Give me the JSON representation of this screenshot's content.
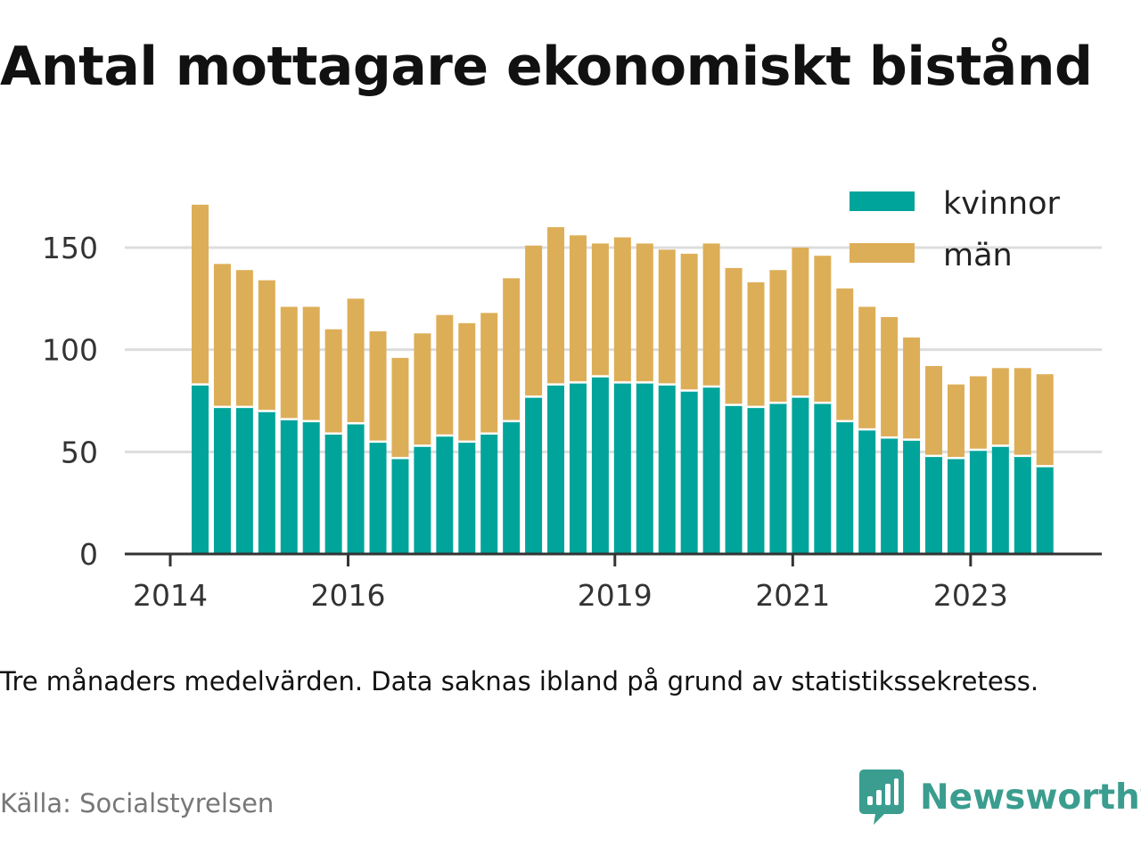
{
  "title": "Antal mottagare ekonomiskt bistånd",
  "note": "Tre månaders medelvärden. Data saknas ibland på grund av statistikssekretess.",
  "source": "Källa: Socialstyrelsen",
  "brand": {
    "name": "Newsworthy",
    "color": "#3a9d8f",
    "icon": "newsworthy-logo-icon"
  },
  "chart_data": {
    "type": "bar",
    "stacked": true,
    "title": "",
    "xlabel": "",
    "ylabel": "",
    "ylim": [
      0,
      175
    ],
    "yticks": [
      0,
      50,
      100,
      150
    ],
    "grid": true,
    "legend_position": "top-right",
    "x_ticks": [
      {
        "label": "2014",
        "quarter": 0
      },
      {
        "label": "2016",
        "quarter": 8
      },
      {
        "label": "2019",
        "quarter": 20
      },
      {
        "label": "2021",
        "quarter": 28
      },
      {
        "label": "2023",
        "quarter": 36
      }
    ],
    "categories": [
      "2014 Q2",
      "2014 Q3",
      "2014 Q4",
      "2015 Q1",
      "2015 Q2",
      "2015 Q3",
      "2015 Q4",
      "2016 Q1",
      "2016 Q2",
      "2016 Q3",
      "2016 Q4",
      "2017 Q1",
      "2017 Q2",
      "2017 Q3",
      "2017 Q4",
      "2018 Q1",
      "2018 Q2",
      "2018 Q3",
      "2018 Q4",
      "2019 Q1",
      "2019 Q2",
      "2019 Q3",
      "2019 Q4",
      "2020 Q1",
      "2020 Q2",
      "2020 Q3",
      "2020 Q4",
      "2021 Q1",
      "2021 Q2",
      "2021 Q3",
      "2021 Q4",
      "2022 Q1",
      "2022 Q2",
      "2022 Q3",
      "2022 Q4",
      "2023 Q1",
      "2023 Q2",
      "2023 Q3",
      "2023 Q4"
    ],
    "series": [
      {
        "name": "kvinnor",
        "color": "#00a49a",
        "values": [
          83,
          72,
          72,
          70,
          66,
          65,
          59,
          64,
          55,
          47,
          53,
          58,
          55,
          59,
          65,
          77,
          83,
          84,
          87,
          84,
          84,
          83,
          80,
          82,
          73,
          72,
          74,
          77,
          74,
          65,
          61,
          57,
          56,
          48,
          47,
          51,
          53,
          48,
          43
        ]
      },
      {
        "name": "män",
        "color": "#ddae58",
        "values": [
          88,
          70,
          67,
          64,
          55,
          56,
          51,
          61,
          54,
          49,
          55,
          59,
          58,
          59,
          70,
          74,
          77,
          72,
          65,
          71,
          68,
          66,
          67,
          70,
          67,
          61,
          65,
          73,
          72,
          65,
          60,
          59,
          50,
          44,
          36,
          36,
          38,
          43,
          45
        ]
      }
    ]
  }
}
